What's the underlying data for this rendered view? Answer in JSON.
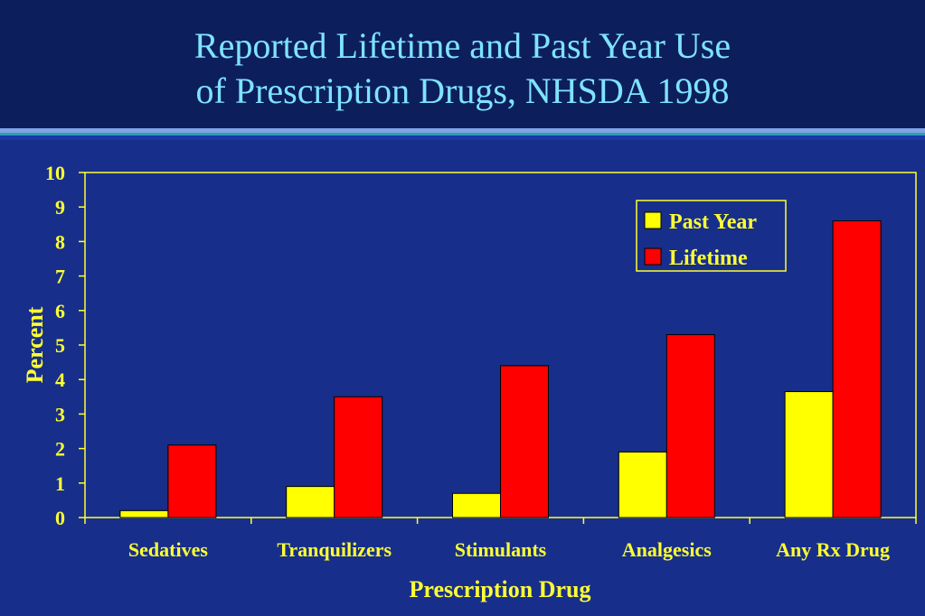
{
  "header": {
    "title_line1": "Reported Lifetime and Past Year Use",
    "title_line2": "of Prescription Drugs, NHSDA 1998"
  },
  "colors": {
    "background": "#172f8a",
    "header": "#0c1f5c",
    "title": "#7fe3ff",
    "text": "#ffff33",
    "past_year": "#ffff00",
    "lifetime": "#ff0000"
  },
  "chart_data": {
    "type": "bar",
    "title": "",
    "xlabel": "Prescription Drug",
    "ylabel": "Percent",
    "ylim": [
      0,
      10
    ],
    "yticks": [
      0,
      1,
      2,
      3,
      4,
      5,
      6,
      7,
      8,
      9,
      10
    ],
    "grid": false,
    "legend_position": "top-right",
    "categories": [
      "Sedatives",
      "Tranquilizers",
      "Stimulants",
      "Analgesics",
      "Any Rx Drug"
    ],
    "series": [
      {
        "name": "Past Year",
        "color": "#ffff00",
        "values": [
          0.2,
          0.9,
          0.7,
          1.9,
          3.65
        ]
      },
      {
        "name": "Lifetime",
        "color": "#ff0000",
        "values": [
          2.1,
          3.5,
          4.4,
          5.3,
          8.6
        ]
      }
    ]
  }
}
